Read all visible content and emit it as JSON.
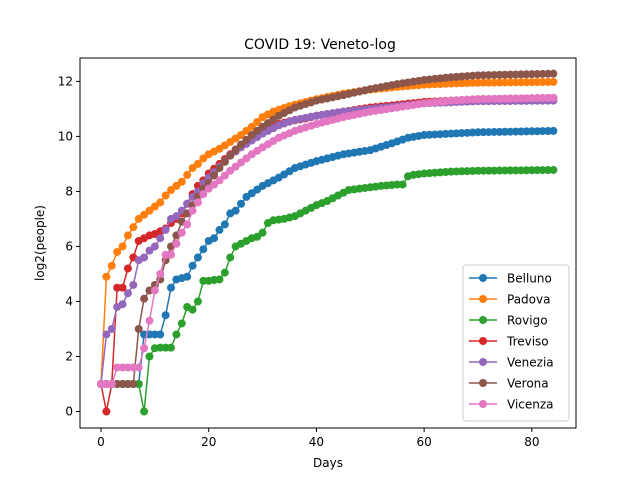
{
  "chart_data": {
    "type": "line",
    "title": "COVID 19: Veneto-log",
    "xlabel": "Days",
    "ylabel": "log2(people)",
    "xlim": [
      -3.9,
      88.2
    ],
    "ylim": [
      -0.6,
      12.85
    ],
    "xticks": [
      0,
      20,
      40,
      60,
      80
    ],
    "yticks": [
      0,
      2,
      4,
      6,
      8,
      10,
      12
    ],
    "grid": false,
    "legend_position": "lower-right",
    "marker": "circle",
    "series": [
      {
        "name": "Belluno",
        "color": "#1f77b4",
        "keypoints": [
          [
            0,
            1
          ],
          [
            1,
            1
          ],
          [
            2,
            1
          ],
          [
            3,
            1
          ],
          [
            4,
            1
          ],
          [
            5,
            1
          ],
          [
            6,
            1
          ],
          [
            7,
            1
          ],
          [
            8,
            2.8
          ],
          [
            9,
            2.8
          ],
          [
            10,
            2.8
          ],
          [
            11,
            2.8
          ],
          [
            12,
            3.5
          ],
          [
            13,
            4.5
          ],
          [
            14,
            4.8
          ],
          [
            15,
            4.85
          ],
          [
            16,
            4.9
          ],
          [
            17,
            5.3
          ],
          [
            18,
            5.6
          ],
          [
            19,
            5.9
          ],
          [
            20,
            6.2
          ],
          [
            21,
            6.3
          ],
          [
            22,
            6.6
          ],
          [
            23,
            6.8
          ],
          [
            24,
            7.2
          ],
          [
            25,
            7.3
          ],
          [
            27,
            7.8
          ],
          [
            30,
            8.2
          ],
          [
            33,
            8.5
          ],
          [
            36,
            8.85
          ],
          [
            40,
            9.1
          ],
          [
            45,
            9.35
          ],
          [
            50,
            9.5
          ],
          [
            54,
            9.75
          ],
          [
            57,
            9.95
          ],
          [
            60,
            10.05
          ],
          [
            65,
            10.1
          ],
          [
            70,
            10.15
          ],
          [
            84,
            10.2
          ]
        ]
      },
      {
        "name": "Padova",
        "color": "#ff7f0e",
        "keypoints": [
          [
            0,
            1
          ],
          [
            1,
            4.9
          ],
          [
            2,
            5.3
          ],
          [
            3,
            5.8
          ],
          [
            4,
            6.0
          ],
          [
            5,
            6.4
          ],
          [
            6,
            6.7
          ],
          [
            7,
            7.0
          ],
          [
            8,
            7.15
          ],
          [
            9,
            7.3
          ],
          [
            10,
            7.45
          ],
          [
            11,
            7.6
          ],
          [
            12,
            7.85
          ],
          [
            13,
            8.05
          ],
          [
            14,
            8.2
          ],
          [
            15,
            8.35
          ],
          [
            16,
            8.6
          ],
          [
            17,
            8.85
          ],
          [
            18,
            9.0
          ],
          [
            19,
            9.2
          ],
          [
            20,
            9.35
          ],
          [
            22,
            9.55
          ],
          [
            24,
            9.8
          ],
          [
            26,
            10.05
          ],
          [
            28,
            10.35
          ],
          [
            30,
            10.7
          ],
          [
            32,
            10.9
          ],
          [
            35,
            11.1
          ],
          [
            38,
            11.25
          ],
          [
            40,
            11.35
          ],
          [
            45,
            11.55
          ],
          [
            50,
            11.7
          ],
          [
            55,
            11.8
          ],
          [
            60,
            11.88
          ],
          [
            65,
            11.92
          ],
          [
            70,
            11.95
          ],
          [
            84,
            11.98
          ]
        ]
      },
      {
        "name": "Rovigo",
        "color": "#2ca02c",
        "keypoints": [
          [
            0,
            1
          ],
          [
            1,
            1
          ],
          [
            2,
            1
          ],
          [
            3,
            1
          ],
          [
            4,
            1
          ],
          [
            5,
            1
          ],
          [
            6,
            1
          ],
          [
            7,
            1
          ],
          [
            8,
            0
          ],
          [
            9,
            2.0
          ],
          [
            10,
            2.3
          ],
          [
            11,
            2.32
          ],
          [
            12,
            2.32
          ],
          [
            13,
            2.32
          ],
          [
            14,
            2.8
          ],
          [
            15,
            3.2
          ],
          [
            16,
            3.8
          ],
          [
            17,
            3.7
          ],
          [
            18,
            4.0
          ],
          [
            19,
            4.75
          ],
          [
            20,
            4.75
          ],
          [
            21,
            4.78
          ],
          [
            22,
            4.8
          ],
          [
            23,
            5.05
          ],
          [
            24,
            5.6
          ],
          [
            25,
            6.0
          ],
          [
            26,
            6.1
          ],
          [
            27,
            6.2
          ],
          [
            28,
            6.3
          ],
          [
            29,
            6.35
          ],
          [
            30,
            6.5
          ],
          [
            31,
            6.85
          ],
          [
            32,
            6.95
          ],
          [
            34,
            7.0
          ],
          [
            36,
            7.1
          ],
          [
            38,
            7.3
          ],
          [
            40,
            7.5
          ],
          [
            42,
            7.65
          ],
          [
            44,
            7.85
          ],
          [
            46,
            8.05
          ],
          [
            48,
            8.1
          ],
          [
            50,
            8.15
          ],
          [
            52,
            8.2
          ],
          [
            55,
            8.25
          ],
          [
            56,
            8.25
          ],
          [
            57,
            8.55
          ],
          [
            58,
            8.6
          ],
          [
            60,
            8.65
          ],
          [
            65,
            8.72
          ],
          [
            70,
            8.75
          ],
          [
            84,
            8.78
          ]
        ]
      },
      {
        "name": "Treviso",
        "color": "#d62728",
        "keypoints": [
          [
            0,
            1
          ],
          [
            1,
            0
          ],
          [
            2,
            1
          ],
          [
            3,
            4.5
          ],
          [
            4,
            4.5
          ],
          [
            5,
            5.2
          ],
          [
            6,
            5.6
          ],
          [
            7,
            6.2
          ],
          [
            8,
            6.3
          ],
          [
            9,
            6.4
          ],
          [
            10,
            6.45
          ],
          [
            11,
            6.55
          ],
          [
            12,
            6.65
          ],
          [
            13,
            6.85
          ],
          [
            14,
            7.0
          ],
          [
            15,
            7.2
          ],
          [
            16,
            7.55
          ],
          [
            17,
            7.9
          ],
          [
            18,
            8.2
          ],
          [
            19,
            8.4
          ],
          [
            20,
            8.65
          ],
          [
            22,
            9.0
          ],
          [
            24,
            9.35
          ],
          [
            26,
            9.7
          ],
          [
            28,
            10.0
          ],
          [
            30,
            10.25
          ],
          [
            32,
            10.4
          ],
          [
            35,
            10.55
          ],
          [
            38,
            10.65
          ],
          [
            40,
            10.75
          ],
          [
            45,
            10.9
          ],
          [
            50,
            11.05
          ],
          [
            55,
            11.15
          ],
          [
            60,
            11.25
          ],
          [
            70,
            11.35
          ],
          [
            84,
            11.4
          ]
        ]
      },
      {
        "name": "Venezia",
        "color": "#9467bd",
        "keypoints": [
          [
            0,
            1
          ],
          [
            1,
            2.8
          ],
          [
            2,
            3.0
          ],
          [
            3,
            3.8
          ],
          [
            4,
            3.9
          ],
          [
            5,
            4.3
          ],
          [
            6,
            4.6
          ],
          [
            7,
            5.5
          ],
          [
            8,
            5.6
          ],
          [
            9,
            5.85
          ],
          [
            10,
            6.0
          ],
          [
            11,
            6.3
          ],
          [
            12,
            6.6
          ],
          [
            13,
            7.0
          ],
          [
            14,
            7.1
          ],
          [
            15,
            7.3
          ],
          [
            16,
            7.55
          ],
          [
            17,
            7.8
          ],
          [
            18,
            8.0
          ],
          [
            19,
            8.3
          ],
          [
            20,
            8.5
          ],
          [
            22,
            8.9
          ],
          [
            24,
            9.3
          ],
          [
            26,
            9.6
          ],
          [
            28,
            9.85
          ],
          [
            30,
            10.1
          ],
          [
            33,
            10.4
          ],
          [
            36,
            10.6
          ],
          [
            40,
            10.75
          ],
          [
            45,
            10.9
          ],
          [
            50,
            11.0
          ],
          [
            55,
            11.1
          ],
          [
            60,
            11.2
          ],
          [
            70,
            11.28
          ],
          [
            84,
            11.3
          ]
        ]
      },
      {
        "name": "Verona",
        "color": "#8c564b",
        "keypoints": [
          [
            0,
            1
          ],
          [
            1,
            1
          ],
          [
            2,
            1
          ],
          [
            3,
            1
          ],
          [
            4,
            1
          ],
          [
            5,
            1
          ],
          [
            6,
            1
          ],
          [
            7,
            3.0
          ],
          [
            8,
            4.1
          ],
          [
            9,
            4.4
          ],
          [
            10,
            4.6
          ],
          [
            11,
            4.8
          ],
          [
            12,
            5.5
          ],
          [
            13,
            6.0
          ],
          [
            14,
            6.4
          ],
          [
            15,
            6.9
          ],
          [
            16,
            7.2
          ],
          [
            17,
            7.5
          ],
          [
            18,
            7.8
          ],
          [
            19,
            8.1
          ],
          [
            20,
            8.3
          ],
          [
            22,
            8.85
          ],
          [
            24,
            9.3
          ],
          [
            26,
            9.7
          ],
          [
            28,
            10.05
          ],
          [
            30,
            10.35
          ],
          [
            33,
            10.75
          ],
          [
            36,
            11.05
          ],
          [
            40,
            11.3
          ],
          [
            45,
            11.5
          ],
          [
            50,
            11.72
          ],
          [
            55,
            11.9
          ],
          [
            60,
            12.05
          ],
          [
            65,
            12.15
          ],
          [
            70,
            12.22
          ],
          [
            84,
            12.28
          ]
        ]
      },
      {
        "name": "Vicenza",
        "color": "#e377c2",
        "keypoints": [
          [
            0,
            1
          ],
          [
            1,
            1
          ],
          [
            2,
            1
          ],
          [
            3,
            1.6
          ],
          [
            4,
            1.6
          ],
          [
            5,
            1.6
          ],
          [
            6,
            1.6
          ],
          [
            7,
            1.6
          ],
          [
            8,
            2.3
          ],
          [
            9,
            3.3
          ],
          [
            10,
            4.4
          ],
          [
            11,
            5.0
          ],
          [
            12,
            5.7
          ],
          [
            13,
            5.7
          ],
          [
            14,
            6.1
          ],
          [
            15,
            6.5
          ],
          [
            16,
            6.8
          ],
          [
            17,
            7.3
          ],
          [
            18,
            7.6
          ],
          [
            19,
            7.9
          ],
          [
            20,
            8.1
          ],
          [
            22,
            8.4
          ],
          [
            24,
            8.75
          ],
          [
            26,
            9.05
          ],
          [
            28,
            9.35
          ],
          [
            30,
            9.6
          ],
          [
            33,
            9.95
          ],
          [
            36,
            10.2
          ],
          [
            40,
            10.45
          ],
          [
            45,
            10.7
          ],
          [
            50,
            10.9
          ],
          [
            55,
            11.05
          ],
          [
            60,
            11.2
          ],
          [
            65,
            11.3
          ],
          [
            70,
            11.35
          ],
          [
            84,
            11.4
          ]
        ]
      }
    ]
  }
}
